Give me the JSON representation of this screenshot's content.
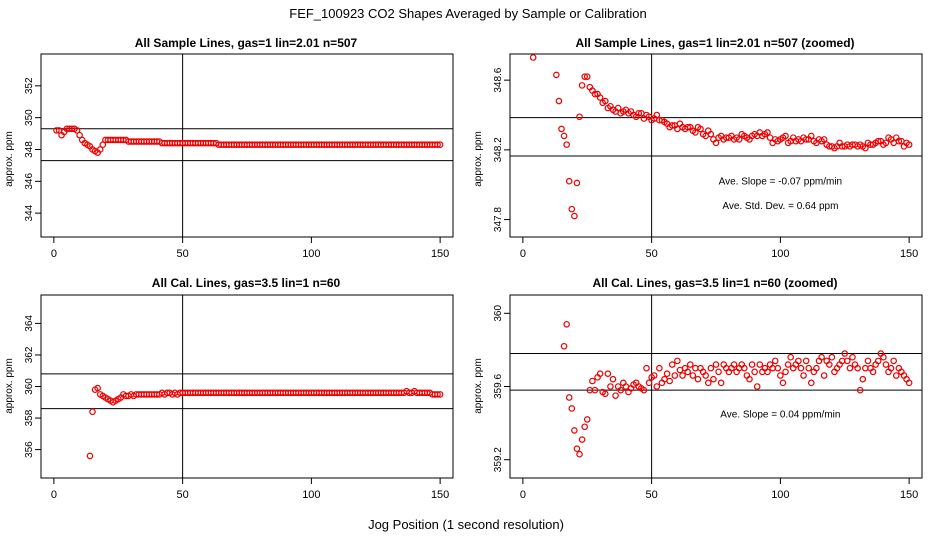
{
  "figure": {
    "title": "FEF_100923  CO2 Shapes Averaged by Sample or Calibration",
    "xlabel": "Jog Position (1 second resolution)"
  },
  "chart_data": [
    {
      "type": "scatter",
      "title": "All Sample Lines, gas=1 lin=2.01 n=507",
      "xlabel": "",
      "ylabel": "approx. ppm",
      "xlim": [
        -5,
        155
      ],
      "ylim": [
        342.5,
        354
      ],
      "xticks": [
        0,
        50,
        100,
        150
      ],
      "yticks": [
        344,
        346,
        348,
        350,
        352
      ],
      "vlines": [
        50
      ],
      "hlines": [
        347.3,
        349.3
      ],
      "color": "#ee0000",
      "annotations": [],
      "x": [
        1,
        2,
        3,
        4,
        5,
        6,
        7,
        8,
        9,
        10,
        11,
        12,
        13,
        14,
        15,
        16,
        17,
        18,
        19,
        20,
        21,
        22,
        23,
        24,
        25,
        26,
        27,
        28,
        29,
        30,
        31,
        32,
        33,
        34,
        35,
        36,
        37,
        38,
        39,
        40,
        41,
        42,
        43,
        44,
        45,
        46,
        47,
        48,
        49,
        50,
        51,
        52,
        53,
        54,
        55,
        56,
        57,
        58,
        59,
        60,
        61,
        62,
        63,
        64,
        65,
        66,
        67,
        68,
        69,
        70,
        71,
        72,
        73,
        74,
        75,
        76,
        77,
        78,
        79,
        80,
        81,
        82,
        83,
        84,
        85,
        86,
        87,
        88,
        89,
        90,
        91,
        92,
        93,
        94,
        95,
        96,
        97,
        98,
        99,
        100,
        101,
        102,
        103,
        104,
        105,
        106,
        107,
        108,
        109,
        110,
        111,
        112,
        113,
        114,
        115,
        116,
        117,
        118,
        119,
        120,
        121,
        122,
        123,
        124,
        125,
        126,
        127,
        128,
        129,
        130,
        131,
        132,
        133,
        134,
        135,
        136,
        137,
        138,
        139,
        140,
        141,
        142,
        143,
        144,
        145,
        146,
        147,
        148,
        149,
        150
      ],
      "y": [
        349.2,
        349.2,
        348.9,
        349.1,
        349.3,
        349.3,
        349.3,
        349.3,
        349.2,
        348.9,
        348.6,
        348.4,
        348.3,
        348.2,
        348.0,
        347.9,
        347.8,
        348.0,
        348.3,
        348.6,
        348.6,
        348.6,
        348.6,
        348.6,
        348.6,
        348.6,
        348.6,
        348.6,
        348.5,
        348.5,
        348.5,
        348.5,
        348.5,
        348.5,
        348.5,
        348.5,
        348.5,
        348.5,
        348.5,
        348.5,
        348.5,
        348.4,
        348.4,
        348.4,
        348.4,
        348.4,
        348.4,
        348.4,
        348.4,
        348.4,
        348.4,
        348.4,
        348.4,
        348.4,
        348.4,
        348.4,
        348.4,
        348.4,
        348.4,
        348.4,
        348.4,
        348.4,
        348.4,
        348.3,
        348.3,
        348.3,
        348.3,
        348.3,
        348.3,
        348.3,
        348.3,
        348.3,
        348.3,
        348.3,
        348.3,
        348.3,
        348.3,
        348.3,
        348.3,
        348.3,
        348.3,
        348.3,
        348.3,
        348.3,
        348.3,
        348.3,
        348.3,
        348.3,
        348.3,
        348.3,
        348.3,
        348.3,
        348.3,
        348.3,
        348.3,
        348.3,
        348.3,
        348.3,
        348.3,
        348.3,
        348.3,
        348.3,
        348.3,
        348.3,
        348.3,
        348.3,
        348.3,
        348.3,
        348.3,
        348.3,
        348.3,
        348.3,
        348.3,
        348.3,
        348.3,
        348.3,
        348.3,
        348.3,
        348.3,
        348.3,
        348.3,
        348.3,
        348.3,
        348.3,
        348.3,
        348.3,
        348.3,
        348.3,
        348.3,
        348.3,
        348.3,
        348.3,
        348.3,
        348.3,
        348.3,
        348.3,
        348.3,
        348.3,
        348.3,
        348.3,
        348.3,
        348.3,
        348.3,
        348.3,
        348.3,
        348.3,
        348.3,
        348.3,
        348.3,
        348.3
      ]
    },
    {
      "type": "scatter",
      "title": "All Sample Lines, gas=1 lin=2.01 n=507 (zoomed)",
      "xlabel": "",
      "ylabel": "approx. ppm",
      "xlim": [
        -5,
        155
      ],
      "ylim": [
        347.7,
        348.75
      ],
      "xticks": [
        0,
        50,
        100,
        150
      ],
      "yticks": [
        347.8,
        348.2,
        348.6
      ],
      "vlines": [
        50
      ],
      "hlines": [
        348.165,
        348.385
      ],
      "color": "#ee0000",
      "annotations": [
        {
          "label": "Ave. Slope =",
          "value": "-0.07",
          "unit": "ppm/min",
          "x": 100,
          "y": 348.0
        },
        {
          "label": "Ave. Std. Dev. =",
          "value": "0.64",
          "unit": "ppm",
          "x": 100,
          "y": 347.86
        }
      ],
      "x": [
        4,
        13,
        14,
        15,
        16,
        17,
        18,
        19,
        20,
        21,
        22,
        23,
        24,
        25,
        26,
        27,
        28,
        29,
        30,
        31,
        32,
        33,
        34,
        35,
        36,
        37,
        38,
        39,
        40,
        41,
        42,
        43,
        44,
        45,
        46,
        47,
        48,
        49,
        50,
        51,
        52,
        53,
        54,
        55,
        56,
        57,
        58,
        59,
        60,
        61,
        62,
        63,
        64,
        65,
        66,
        67,
        68,
        69,
        70,
        71,
        72,
        73,
        74,
        75,
        76,
        77,
        78,
        79,
        80,
        81,
        82,
        83,
        84,
        85,
        86,
        87,
        88,
        89,
        90,
        91,
        92,
        93,
        94,
        95,
        96,
        97,
        98,
        99,
        100,
        101,
        102,
        103,
        104,
        105,
        106,
        107,
        108,
        109,
        110,
        111,
        112,
        113,
        114,
        115,
        116,
        117,
        118,
        119,
        120,
        121,
        122,
        123,
        124,
        125,
        126,
        127,
        128,
        129,
        130,
        131,
        132,
        133,
        134,
        135,
        136,
        137,
        138,
        139,
        140,
        141,
        142,
        143,
        144,
        145,
        146,
        147,
        148,
        149,
        150
      ],
      "y": [
        348.73,
        348.63,
        348.48,
        348.32,
        348.28,
        348.23,
        348.02,
        347.86,
        347.82,
        348.01,
        348.39,
        348.57,
        348.62,
        348.62,
        348.56,
        348.54,
        348.52,
        348.52,
        348.5,
        348.47,
        348.48,
        348.44,
        348.45,
        348.43,
        348.42,
        348.44,
        348.41,
        348.42,
        348.43,
        348.41,
        348.42,
        348.4,
        348.39,
        348.41,
        348.41,
        348.38,
        348.4,
        348.39,
        348.37,
        348.38,
        348.4,
        348.37,
        348.37,
        348.36,
        348.35,
        348.33,
        348.34,
        348.34,
        348.32,
        348.35,
        348.33,
        348.32,
        348.33,
        348.33,
        348.31,
        348.3,
        348.33,
        348.32,
        348.29,
        348.28,
        348.31,
        348.29,
        348.26,
        348.24,
        348.27,
        348.28,
        348.26,
        348.27,
        348.27,
        348.28,
        348.26,
        348.27,
        348.26,
        348.29,
        348.28,
        348.27,
        348.26,
        348.28,
        348.29,
        348.28,
        348.3,
        348.28,
        348.29,
        348.3,
        348.27,
        348.24,
        348.26,
        348.25,
        348.26,
        348.27,
        348.28,
        348.24,
        348.25,
        348.27,
        348.25,
        348.26,
        348.25,
        348.27,
        348.26,
        348.26,
        348.28,
        348.25,
        348.24,
        348.26,
        348.25,
        348.26,
        348.23,
        348.22,
        348.22,
        348.21,
        348.22,
        348.24,
        348.22,
        348.22,
        348.23,
        348.22,
        348.23,
        348.23,
        348.22,
        348.23,
        348.22,
        348.21,
        348.24,
        348.23,
        348.23,
        348.24,
        348.25,
        348.25,
        348.23,
        348.24,
        348.27,
        348.26,
        348.24,
        348.27,
        348.25,
        348.25,
        348.22,
        348.24,
        348.23
      ]
    },
    {
      "type": "scatter",
      "title": "All Cal. Lines, gas=3.5 lin=1 n=60",
      "xlabel": "",
      "ylabel": "approx. ppm",
      "xlim": [
        -5,
        155
      ],
      "ylim": [
        354.2,
        365.8
      ],
      "xticks": [
        0,
        50,
        100,
        150
      ],
      "yticks": [
        356,
        358,
        360,
        362,
        364
      ],
      "vlines": [
        50
      ],
      "hlines": [
        358.6,
        360.8
      ],
      "color": "#ee0000",
      "annotations": [],
      "x": [
        14,
        15,
        16,
        17,
        18,
        19,
        20,
        21,
        22,
        23,
        24,
        25,
        26,
        27,
        28,
        29,
        30,
        31,
        32,
        33,
        34,
        35,
        36,
        37,
        38,
        39,
        40,
        41,
        42,
        43,
        44,
        45,
        46,
        47,
        48,
        49,
        50,
        51,
        52,
        53,
        54,
        55,
        56,
        57,
        58,
        59,
        60,
        61,
        62,
        63,
        64,
        65,
        66,
        67,
        68,
        69,
        70,
        71,
        72,
        73,
        74,
        75,
        76,
        77,
        78,
        79,
        80,
        81,
        82,
        83,
        84,
        85,
        86,
        87,
        88,
        89,
        90,
        91,
        92,
        93,
        94,
        95,
        96,
        97,
        98,
        99,
        100,
        101,
        102,
        103,
        104,
        105,
        106,
        107,
        108,
        109,
        110,
        111,
        112,
        113,
        114,
        115,
        116,
        117,
        118,
        119,
        120,
        121,
        122,
        123,
        124,
        125,
        126,
        127,
        128,
        129,
        130,
        131,
        132,
        133,
        134,
        135,
        136,
        137,
        138,
        139,
        140,
        141,
        142,
        143,
        144,
        145,
        146,
        147,
        148,
        149,
        150
      ],
      "y": [
        355.6,
        358.4,
        359.8,
        359.9,
        359.5,
        359.4,
        359.3,
        359.2,
        359.1,
        359.0,
        359.1,
        359.2,
        359.3,
        359.5,
        359.4,
        359.4,
        359.5,
        359.4,
        359.5,
        359.5,
        359.5,
        359.5,
        359.5,
        359.5,
        359.5,
        359.5,
        359.5,
        359.5,
        359.6,
        359.5,
        359.6,
        359.6,
        359.5,
        359.6,
        359.5,
        359.6,
        359.6,
        359.6,
        359.6,
        359.6,
        359.6,
        359.6,
        359.6,
        359.6,
        359.6,
        359.6,
        359.6,
        359.6,
        359.6,
        359.6,
        359.6,
        359.6,
        359.6,
        359.6,
        359.6,
        359.6,
        359.6,
        359.6,
        359.6,
        359.6,
        359.6,
        359.6,
        359.6,
        359.6,
        359.6,
        359.6,
        359.6,
        359.6,
        359.6,
        359.6,
        359.6,
        359.6,
        359.6,
        359.6,
        359.6,
        359.6,
        359.6,
        359.6,
        359.6,
        359.6,
        359.6,
        359.6,
        359.6,
        359.6,
        359.6,
        359.6,
        359.6,
        359.6,
        359.6,
        359.6,
        359.6,
        359.6,
        359.6,
        359.6,
        359.6,
        359.6,
        359.6,
        359.6,
        359.6,
        359.6,
        359.6,
        359.6,
        359.6,
        359.6,
        359.6,
        359.6,
        359.6,
        359.6,
        359.6,
        359.6,
        359.6,
        359.6,
        359.6,
        359.6,
        359.6,
        359.6,
        359.6,
        359.6,
        359.6,
        359.6,
        359.6,
        359.6,
        359.6,
        359.7,
        359.6,
        359.6,
        359.7,
        359.6,
        359.6,
        359.6,
        359.6,
        359.6,
        359.6,
        359.5,
        359.5,
        359.5,
        359.5
      ]
    },
    {
      "type": "scatter",
      "title": "All Cal. Lines, gas=3.5 lin=1 n=60 (zoomed)",
      "xlabel": "",
      "ylabel": "approx. ppm",
      "xlim": [
        -5,
        155
      ],
      "ylim": [
        359.1,
        360.1
      ],
      "xticks": [
        0,
        50,
        100,
        150
      ],
      "yticks": [
        359.2,
        359.6,
        360.0
      ],
      "vlines": [
        50
      ],
      "hlines": [
        359.58,
        359.78
      ],
      "color": "#ee0000",
      "annotations": [
        {
          "label": "Ave. Slope =",
          "value": "0.04",
          "unit": "ppm/min",
          "x": 100,
          "y": 359.43
        }
      ],
      "x": [
        16,
        17,
        18,
        19,
        20,
        21,
        22,
        23,
        24,
        25,
        26,
        27,
        28,
        29,
        30,
        31,
        32,
        33,
        34,
        35,
        36,
        37,
        38,
        39,
        40,
        41,
        42,
        43,
        44,
        45,
        46,
        47,
        48,
        49,
        50,
        51,
        52,
        53,
        54,
        55,
        56,
        57,
        58,
        59,
        60,
        61,
        62,
        63,
        64,
        65,
        66,
        67,
        68,
        69,
        70,
        71,
        72,
        73,
        74,
        75,
        76,
        77,
        78,
        79,
        80,
        81,
        82,
        83,
        84,
        85,
        86,
        87,
        88,
        89,
        90,
        91,
        92,
        93,
        94,
        95,
        96,
        97,
        98,
        99,
        100,
        101,
        102,
        103,
        104,
        105,
        106,
        107,
        108,
        109,
        110,
        111,
        112,
        113,
        114,
        115,
        116,
        117,
        118,
        119,
        120,
        121,
        122,
        123,
        124,
        125,
        126,
        127,
        128,
        129,
        130,
        131,
        132,
        133,
        134,
        135,
        136,
        137,
        138,
        139,
        140,
        141,
        142,
        143,
        144,
        145,
        146,
        147,
        148,
        149,
        150
      ],
      "y": [
        359.82,
        359.94,
        359.54,
        359.48,
        359.36,
        359.26,
        359.23,
        359.31,
        359.38,
        359.42,
        359.58,
        359.63,
        359.58,
        359.65,
        359.67,
        359.57,
        359.56,
        359.67,
        359.6,
        359.64,
        359.55,
        359.6,
        359.58,
        359.62,
        359.6,
        359.57,
        359.59,
        359.61,
        359.62,
        359.6,
        359.59,
        359.58,
        359.7,
        359.62,
        359.65,
        359.66,
        359.6,
        359.7,
        359.62,
        359.64,
        359.67,
        359.63,
        359.72,
        359.66,
        359.74,
        359.69,
        359.66,
        359.7,
        359.68,
        359.72,
        359.66,
        359.7,
        359.64,
        359.7,
        359.68,
        359.66,
        359.62,
        359.7,
        359.64,
        359.72,
        359.68,
        359.62,
        359.72,
        359.7,
        359.68,
        359.7,
        359.72,
        359.68,
        359.7,
        359.72,
        359.7,
        359.66,
        359.64,
        359.72,
        359.68,
        359.6,
        359.72,
        359.68,
        359.7,
        359.68,
        359.72,
        359.7,
        359.74,
        359.7,
        359.66,
        359.62,
        359.68,
        359.72,
        359.76,
        359.7,
        359.72,
        359.74,
        359.7,
        359.66,
        359.74,
        359.7,
        359.62,
        359.68,
        359.7,
        359.74,
        359.76,
        359.66,
        359.74,
        359.72,
        359.76,
        359.68,
        359.7,
        359.72,
        359.74,
        359.78,
        359.74,
        359.7,
        359.76,
        359.72,
        359.7,
        359.58,
        359.64,
        359.7,
        359.74,
        359.7,
        359.68,
        359.72,
        359.74,
        359.78,
        359.76,
        359.72,
        359.68,
        359.7,
        359.74,
        359.66,
        359.7,
        359.68,
        359.66,
        359.64,
        359.62
      ]
    }
  ]
}
